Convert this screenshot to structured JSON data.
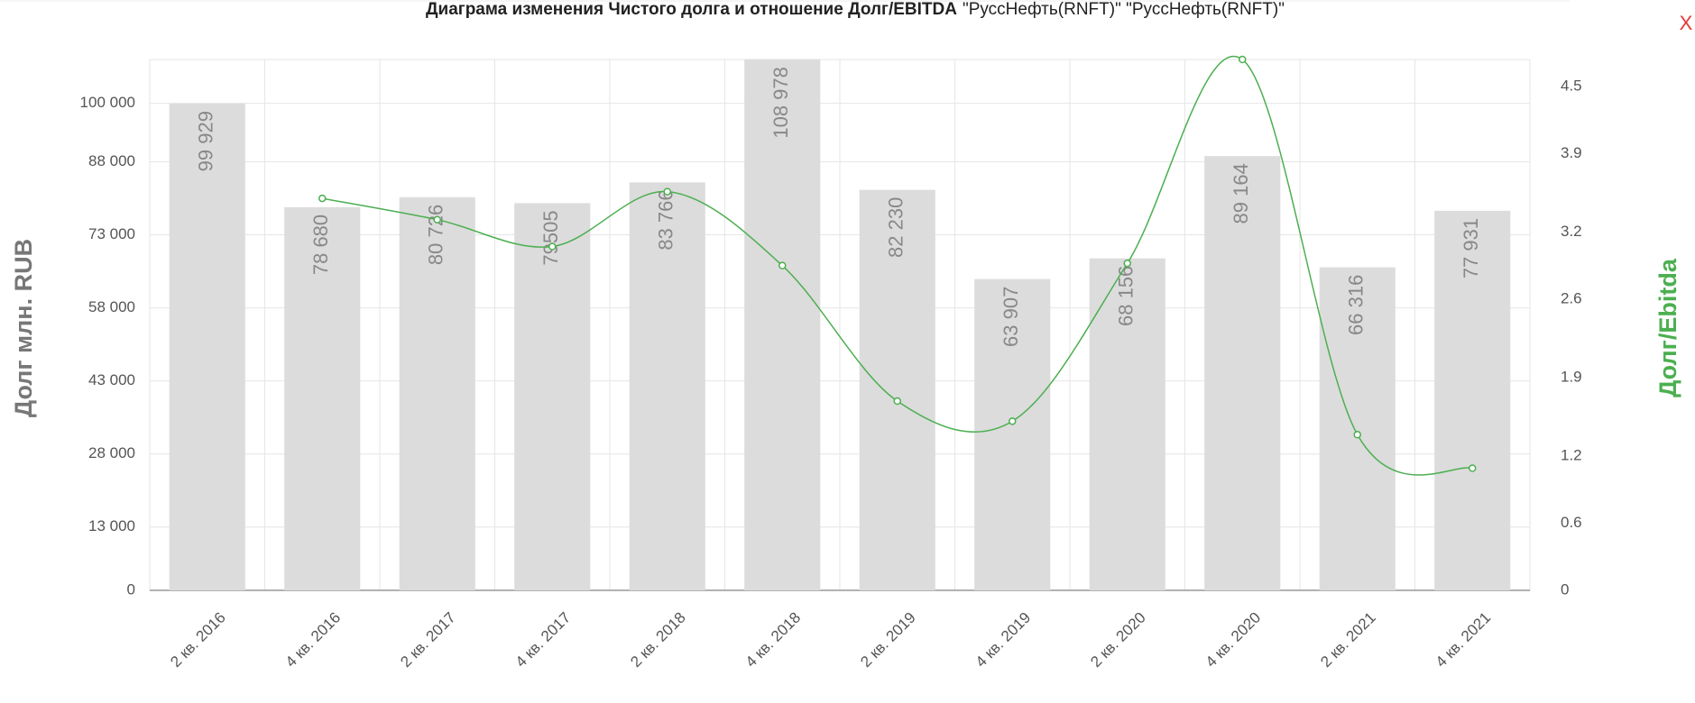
{
  "chart_data": {
    "type": "bar",
    "title": "Диаграма изменения Чистого долга и отношение Долг/EBITDA",
    "subtitle": "\"РуссНефть(RNFT)\" \"РуссНефть(RNFT)\"",
    "close_button": "X",
    "y_label": "Долг млн. RUB",
    "y2_label": "Долг/Ebitda",
    "categories": [
      "2 кв. 2016",
      "4 кв. 2016",
      "2 кв. 2017",
      "4 кв. 2017",
      "2 кв. 2018",
      "4 кв. 2018",
      "2 кв. 2019",
      "4 кв. 2019",
      "2 кв. 2020",
      "4 кв. 2020",
      "2 кв. 2021",
      "4 кв. 2021"
    ],
    "series": [
      {
        "type": "bar",
        "color": "#dcdcdc",
        "values": [
          99929,
          78680,
          80726,
          79505,
          83766,
          108978,
          82230,
          63907,
          68156,
          89164,
          66316,
          77931
        ],
        "value_labels": [
          "99 929",
          "78 680",
          "80 726",
          "79505",
          "83 766",
          "108 978",
          "82 230",
          "63 907",
          "68 156",
          "89 164",
          "66 316",
          "77 931"
        ]
      },
      {
        "type": "line",
        "axis": "y2",
        "color": "#4caf50",
        "values": [
          null,
          3.5,
          3.31,
          3.07,
          3.56,
          2.9,
          1.69,
          1.51,
          2.92,
          4.74,
          1.39,
          1.09
        ]
      }
    ],
    "ylim": [
      0,
      109000
    ],
    "yticks": [
      0,
      {
        "value": 13000,
        "label": "13 000"
      },
      {
        "value": 28000,
        "label": "28 000"
      },
      {
        "value": 43000,
        "label": "43 000"
      },
      {
        "value": 58000,
        "label": "58 000"
      },
      {
        "value": 73000,
        "label": "73 000"
      },
      {
        "value": 88000,
        "label": "88 000"
      },
      {
        "value": 100000,
        "label": "100 000"
      }
    ],
    "y2lim": [
      0,
      4.74
    ],
    "y2ticks": [
      0,
      0.6,
      1.2,
      1.9,
      2.6,
      3.2,
      3.9,
      4.5
    ],
    "grid": true
  }
}
